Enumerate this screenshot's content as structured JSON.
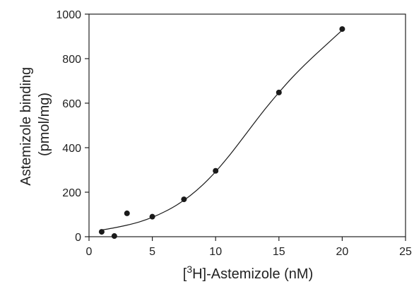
{
  "chart_data": {
    "type": "scatter",
    "title": "",
    "xlabel": {
      "prefix": "[",
      "superscript": "3",
      "suffix": "H]-Astemizole (nM)"
    },
    "ylabel": [
      "Astemizole binding",
      "(pmol/mg)"
    ],
    "xlim": [
      0,
      25
    ],
    "ylim": [
      0,
      1000
    ],
    "xticks": [
      0,
      5,
      10,
      15,
      20,
      25
    ],
    "yticks": [
      0,
      200,
      400,
      600,
      800,
      1000
    ],
    "grid": false,
    "legend": "none",
    "points": [
      {
        "x": 1,
        "y": 22
      },
      {
        "x": 2,
        "y": 3
      },
      {
        "x": 3,
        "y": 105
      },
      {
        "x": 5,
        "y": 90
      },
      {
        "x": 7.5,
        "y": 168
      },
      {
        "x": 10,
        "y": 296
      },
      {
        "x": 15,
        "y": 648
      },
      {
        "x": 20,
        "y": 933
      }
    ],
    "fit_curve": {
      "type": "sigmoid (Hill)",
      "x": [
        1,
        2,
        3,
        4,
        5,
        6,
        7,
        8,
        9,
        10,
        11,
        12,
        13,
        14,
        15,
        16,
        17,
        18,
        19,
        20
      ],
      "y": [
        30,
        40,
        52,
        67,
        87,
        113,
        145,
        185,
        234,
        292,
        359,
        432,
        507,
        580,
        648,
        712,
        770,
        824,
        876,
        928
      ]
    },
    "colors": {
      "points": "#1a1a1a",
      "curve": "#1a1a1a",
      "axes": "#222222"
    }
  }
}
